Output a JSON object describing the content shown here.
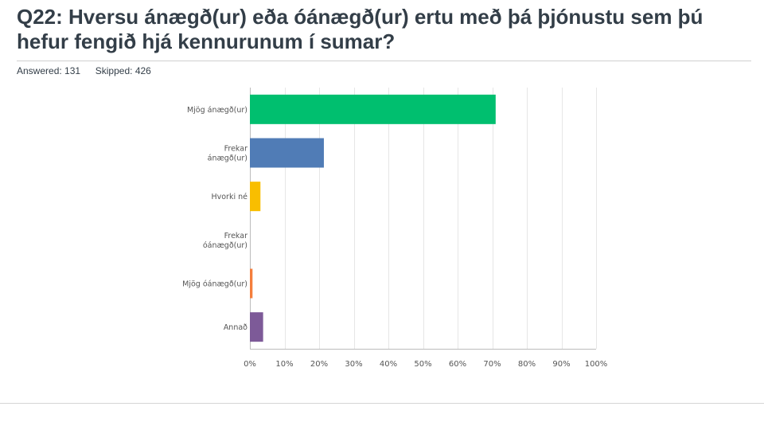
{
  "title": "Q22: Hversu ánægð(ur) eða óánægð(ur) ertu með þá þjónustu sem þú hefur fengið hjá kennurunum í sumar?",
  "stats": {
    "answered_label": "Answered:",
    "answered_value": "131",
    "skipped_label": "Skipped:",
    "skipped_value": "426"
  },
  "chart_data": {
    "type": "bar",
    "orientation": "horizontal",
    "categories": [
      [
        "Mjög ánægð(ur)"
      ],
      [
        "Frekar",
        "ánægð(ur)"
      ],
      [
        "Hvorki né"
      ],
      [
        "Frekar",
        "óánægð(ur)"
      ],
      [
        "Mjög óánægð(ur)"
      ],
      [
        "Annað"
      ]
    ],
    "values": [
      70.99,
      21.37,
      3.05,
      0,
      0.76,
      3.82
    ],
    "colors": [
      "#00bf6f",
      "#507cb6",
      "#f9be00",
      "#6bc8cd",
      "#f47e3c",
      "#7d5a98"
    ],
    "xlim": [
      0,
      100
    ],
    "x_ticks": [
      0,
      10,
      20,
      30,
      40,
      50,
      60,
      70,
      80,
      90,
      100
    ],
    "x_tick_labels": [
      "0%",
      "10%",
      "20%",
      "30%",
      "40%",
      "50%",
      "60%",
      "70%",
      "80%",
      "90%",
      "100%"
    ],
    "grid": true
  }
}
